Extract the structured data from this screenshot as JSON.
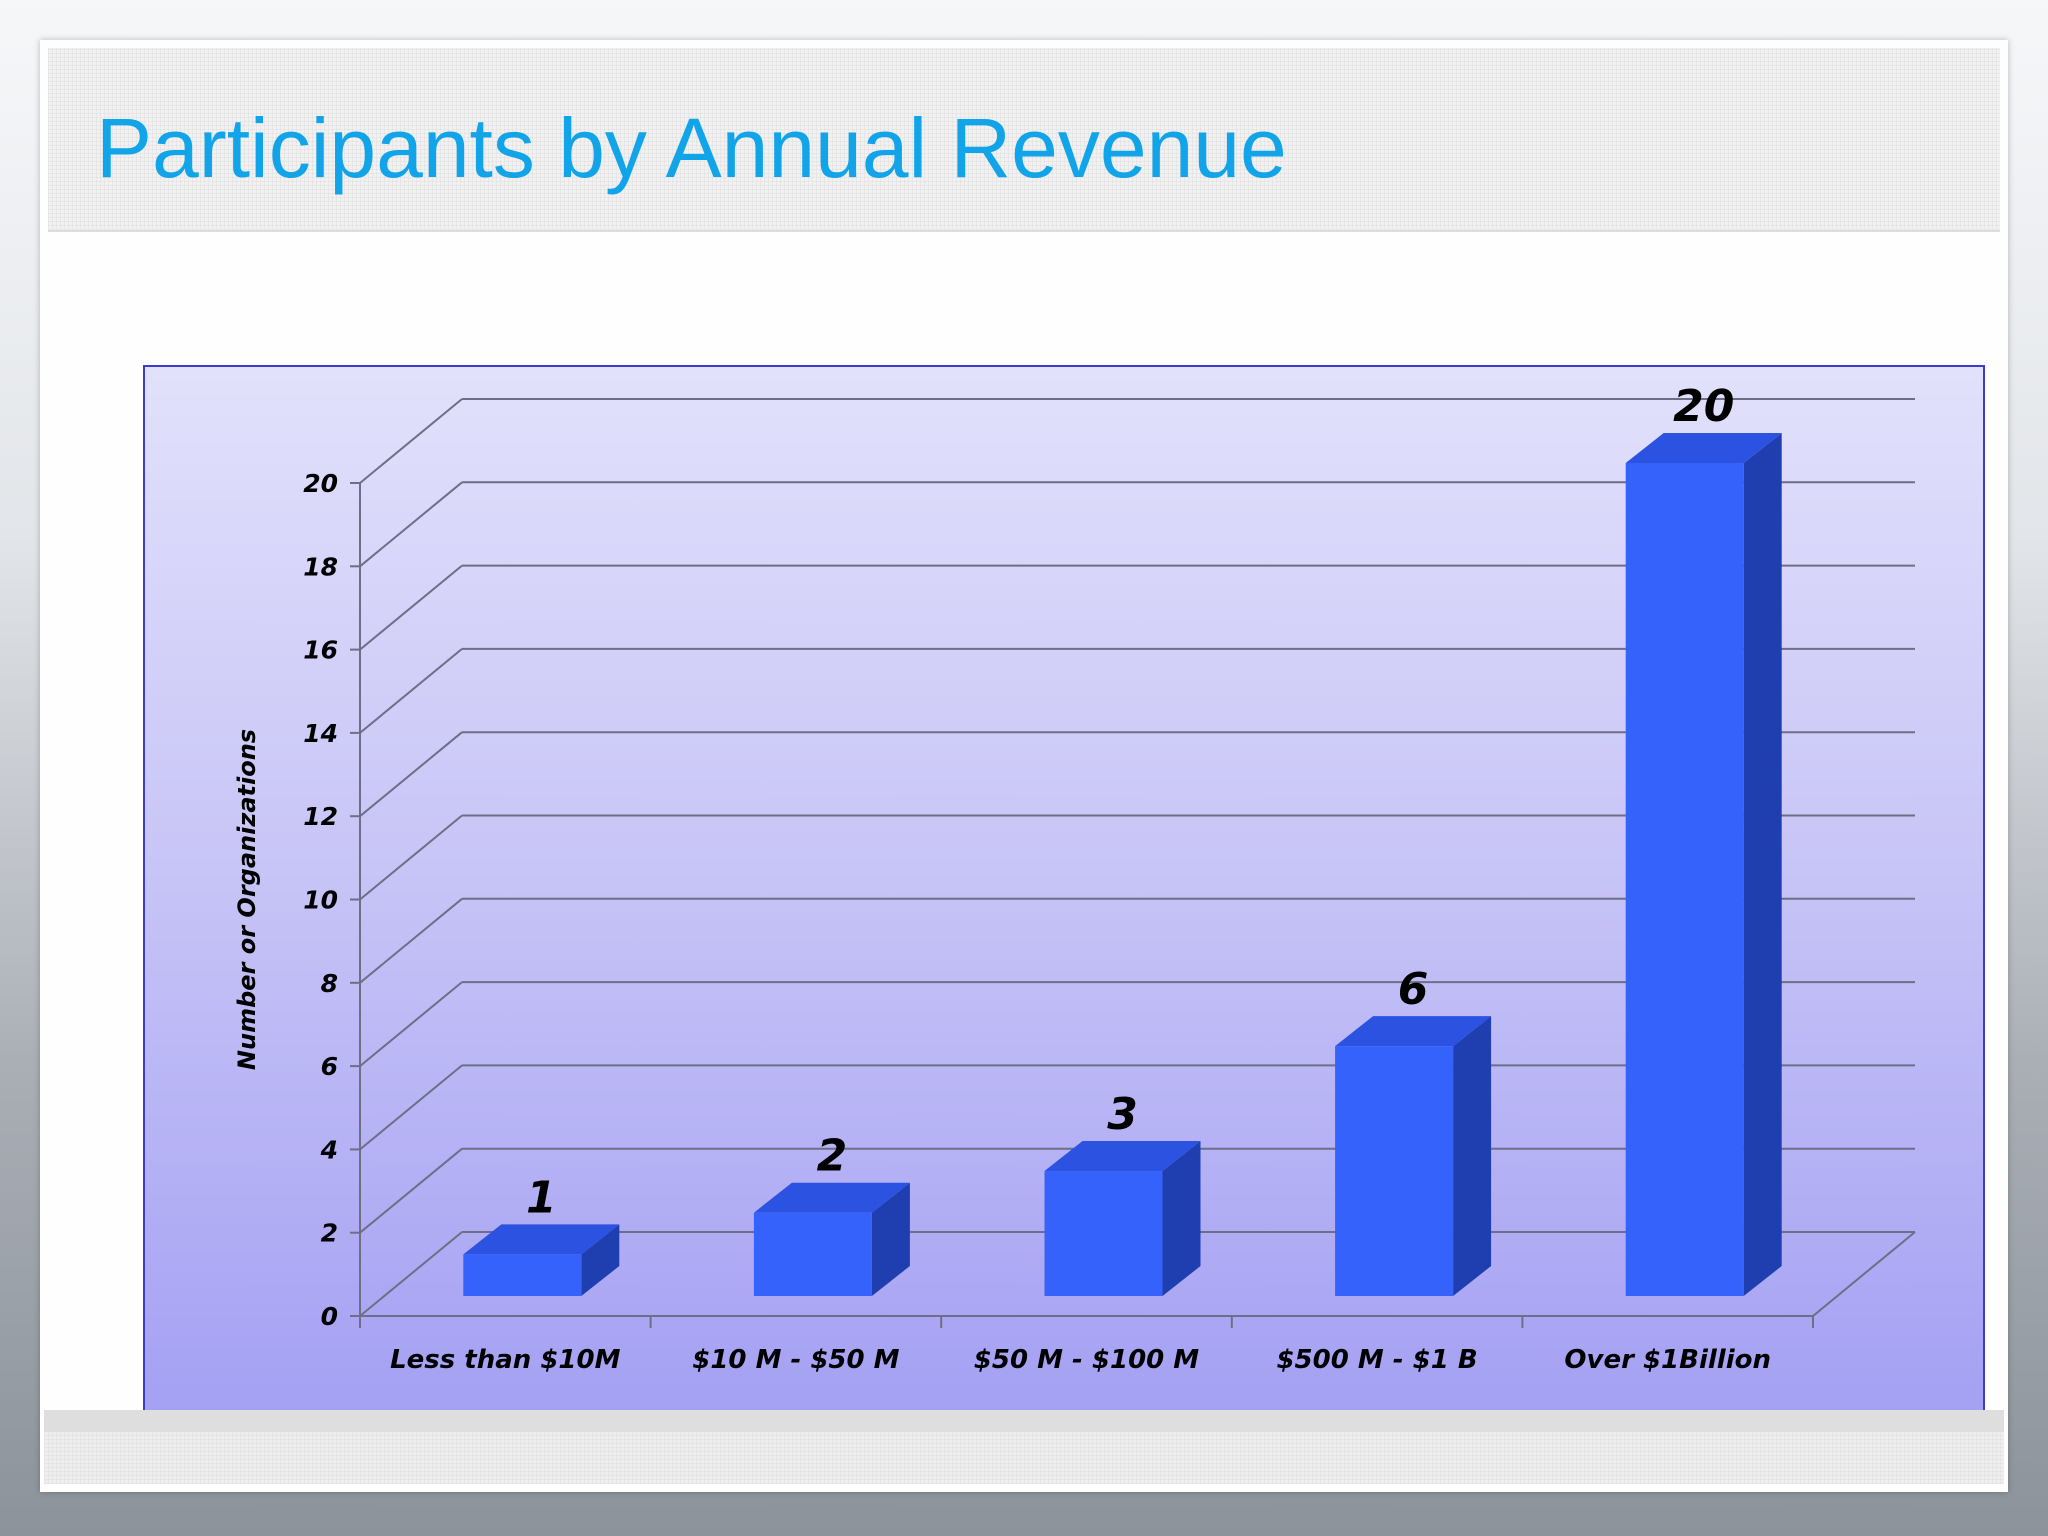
{
  "slide": {
    "title": "Participants by Annual Revenue"
  },
  "chart_data": {
    "type": "bar",
    "title": "",
    "xlabel": "",
    "ylabel": "Number or Organizations",
    "categories": [
      "Less than $10M",
      "$10 M - $50 M",
      "$50 M - $100 M",
      "$500 M - $1 B",
      "Over $1Billion"
    ],
    "values": [
      1,
      2,
      3,
      6,
      20
    ],
    "ylim": [
      0,
      20
    ],
    "yticks": [
      0,
      2,
      4,
      6,
      8,
      10,
      12,
      14,
      16,
      18,
      20
    ],
    "style": "3d-column",
    "grid": true,
    "data_labels": true,
    "colors": {
      "bar_front": "#3562fb",
      "bar_top": "#2b52e0",
      "bar_side": "#1f3fb0",
      "grid_line": "#6e6e86",
      "frame": "#3c3ccc",
      "title": "#11a4e8"
    }
  },
  "icons": {
    "logo": "chevron-logo-icon"
  }
}
